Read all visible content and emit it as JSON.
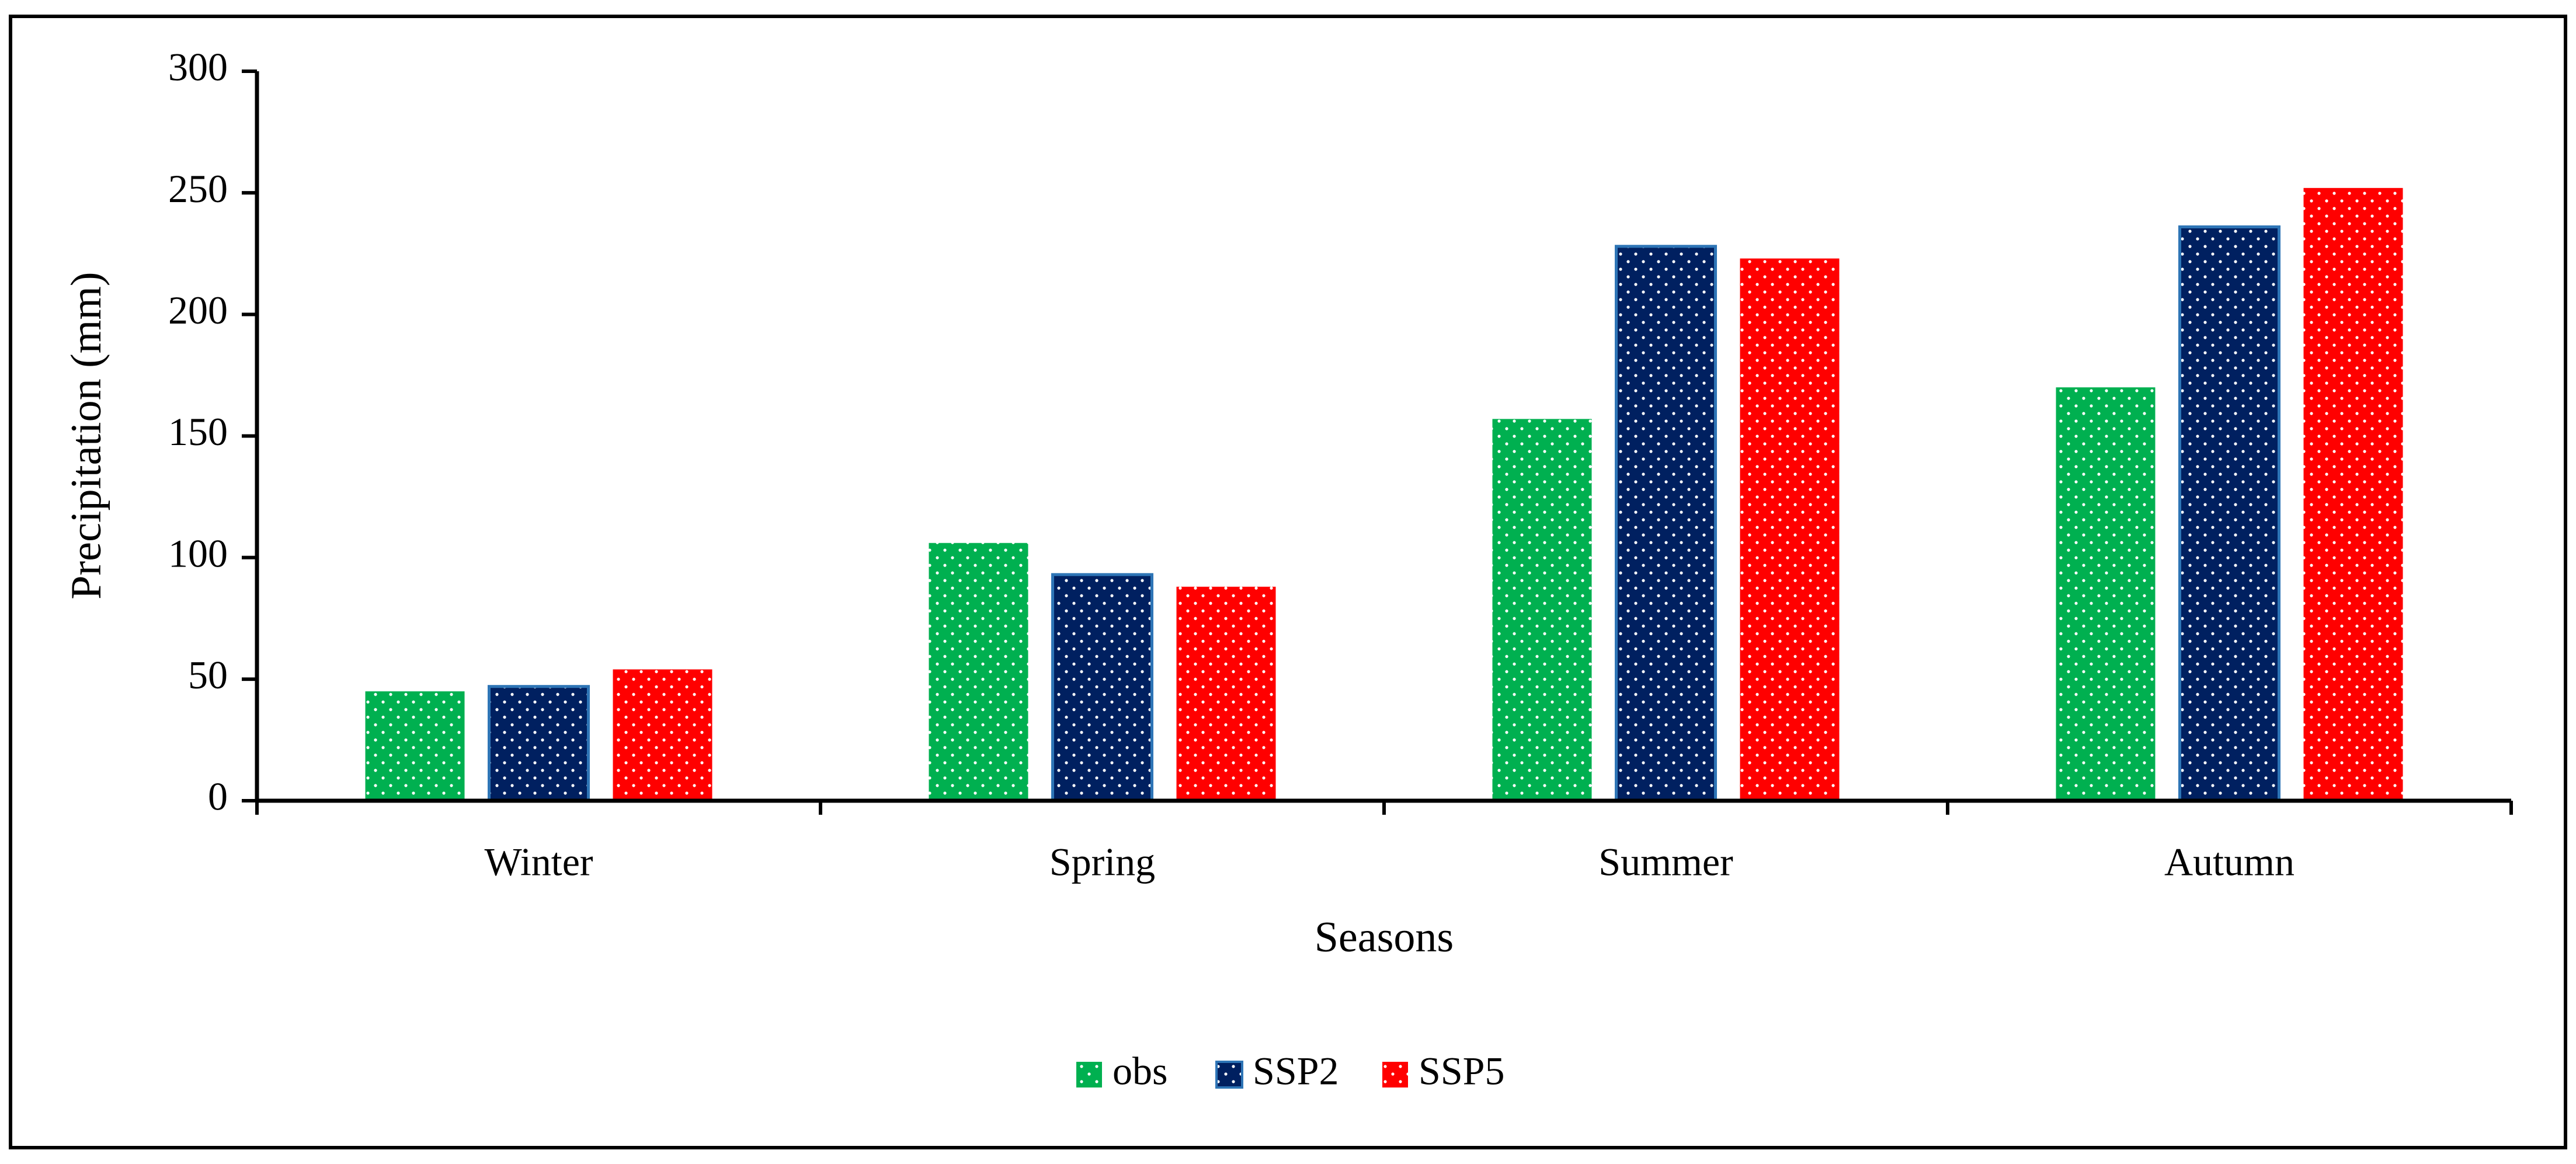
{
  "chart_data": {
    "type": "bar",
    "title": "",
    "xlabel": "Seasons",
    "ylabel": "Precipitation (mm)",
    "ylim": [
      0,
      300
    ],
    "yticks": [
      0,
      50,
      100,
      150,
      200,
      250,
      300
    ],
    "categories": [
      "Winter",
      "Spring",
      "Summer",
      "Autumn"
    ],
    "series": [
      {
        "name": "obs",
        "color": "#00b050",
        "values": [
          45,
          106,
          157,
          170
        ]
      },
      {
        "name": "SSP2",
        "color": "#002060",
        "border": "#2e75b6",
        "values": [
          47,
          93,
          228,
          236
        ]
      },
      {
        "name": "SSP5",
        "color": "#ff0000",
        "values": [
          54,
          88,
          223,
          252
        ]
      }
    ],
    "pattern": "dotted",
    "legend_position": "bottom-center",
    "grid": false
  }
}
